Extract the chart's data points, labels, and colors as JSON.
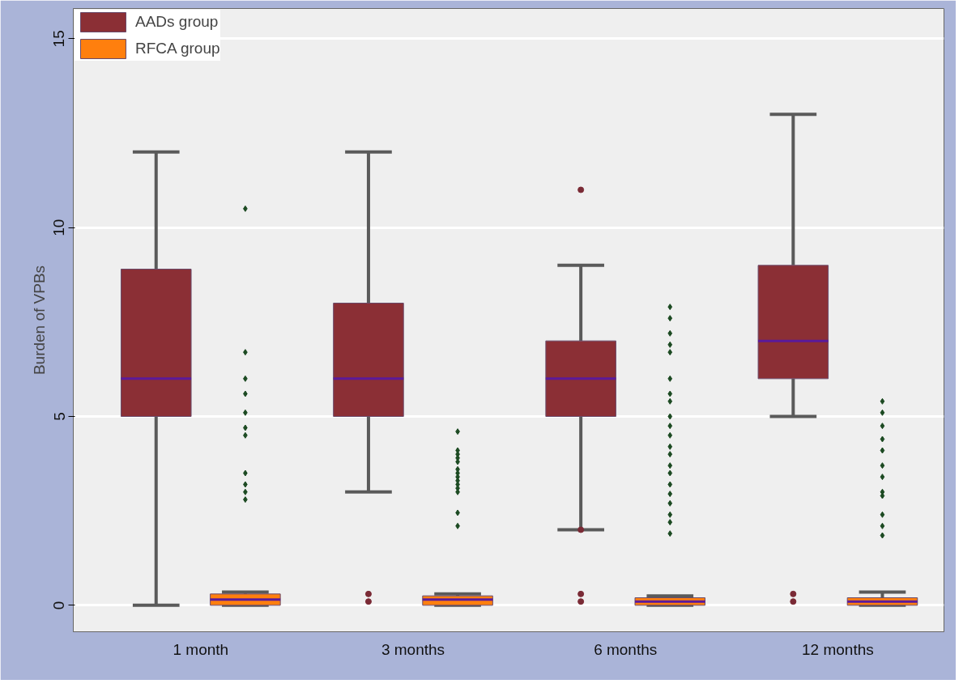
{
  "chart_data": {
    "type": "box",
    "ylabel": "Burden of VPBs",
    "categories": [
      "1 month",
      "3 months",
      "6 months",
      "12 months"
    ],
    "ylim": [
      -0.7,
      15.8
    ],
    "yticks": [
      0,
      5,
      10,
      15
    ],
    "grid": "y",
    "legend": "top left",
    "series": [
      {
        "name": "AADs group",
        "color": "#8b2f35",
        "boxes": [
          {
            "low": 0,
            "q1": 5,
            "median": 6,
            "q3": 8.9,
            "high": 12
          },
          {
            "low": 3,
            "q1": 5,
            "median": 6,
            "q3": 8,
            "high": 12,
            "outliers": [
              0.1,
              0.3
            ]
          },
          {
            "low": 2,
            "q1": 5,
            "median": 6,
            "q3": 7,
            "high": 9,
            "outliers": [
              11,
              2,
              0.1,
              0.3
            ]
          },
          {
            "low": 5,
            "q1": 6,
            "median": 7,
            "q3": 9,
            "high": 13,
            "outliers": [
              0.1,
              0.3
            ]
          }
        ]
      },
      {
        "name": "RFCA group",
        "color": "#ff7f0e",
        "boxes": [
          {
            "low": 0,
            "q1": 0,
            "median": 0.15,
            "q3": 0.3,
            "high": 0.35,
            "outliers": [
              10.5,
              6.7,
              6.0,
              5.6,
              5.1,
              4.7,
              4.5,
              3.5,
              3.2,
              3.0,
              2.8
            ]
          },
          {
            "low": 0,
            "q1": 0,
            "median": 0.15,
            "q3": 0.25,
            "high": 0.3,
            "outliers": [
              4.6,
              4.1,
              4.0,
              3.9,
              3.8,
              3.6,
              3.5,
              3.4,
              3.3,
              3.2,
              3.1,
              3.0,
              2.45,
              2.1
            ]
          },
          {
            "low": 0,
            "q1": 0,
            "median": 0.1,
            "q3": 0.2,
            "high": 0.25,
            "outliers": [
              7.9,
              7.6,
              7.2,
              6.9,
              6.7,
              6.0,
              5.6,
              5.4,
              5.0,
              4.75,
              4.5,
              4.2,
              4.0,
              3.7,
              3.5,
              3.2,
              2.95,
              2.7,
              2.4,
              2.2,
              1.9
            ]
          },
          {
            "low": 0,
            "q1": 0,
            "median": 0.1,
            "q3": 0.2,
            "high": 0.35,
            "outliers": [
              5.4,
              5.1,
              4.75,
              4.4,
              4.1,
              3.7,
              3.4,
              3.0,
              2.9,
              2.4,
              2.1,
              1.85
            ]
          }
        ]
      }
    ]
  }
}
